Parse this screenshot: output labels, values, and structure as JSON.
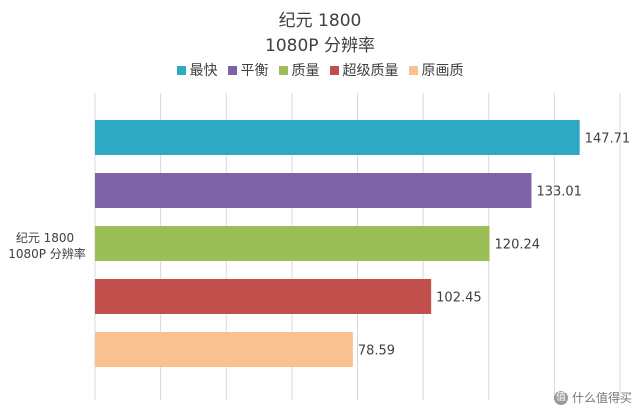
{
  "chart_data": {
    "type": "bar",
    "orientation": "horizontal",
    "title": "纪元 1800",
    "subtitle": "1080P 分辨率",
    "category_label_line1": "纪元 1800",
    "category_label_line2": "1080P 分辨率",
    "categories": [
      "纪元 1800 1080P 分辨率"
    ],
    "series": [
      {
        "name": "最快",
        "values": [
          147.71
        ],
        "label": "147.71",
        "color": "#2EA9C3"
      },
      {
        "name": "平衡",
        "values": [
          133.01
        ],
        "label": "133.01",
        "color": "#7E62A6"
      },
      {
        "name": "质量",
        "values": [
          120.24
        ],
        "label": "120.24",
        "color": "#9BBE56"
      },
      {
        "name": "超级质量",
        "values": [
          102.45
        ],
        "label": "102.45",
        "color": "#C1504D"
      },
      {
        "name": "原画质",
        "values": [
          78.59
        ],
        "label": "78.59",
        "color": "#F9C18F"
      }
    ],
    "xlim": [
      0,
      160
    ],
    "gridlines_x": [
      0,
      20,
      40,
      60,
      80,
      100,
      120,
      140,
      160
    ],
    "grid": true,
    "legend_position": "top"
  },
  "watermark": {
    "text": "什么值得买",
    "icon": "zhi-icon",
    "icon_glyph": "值"
  }
}
